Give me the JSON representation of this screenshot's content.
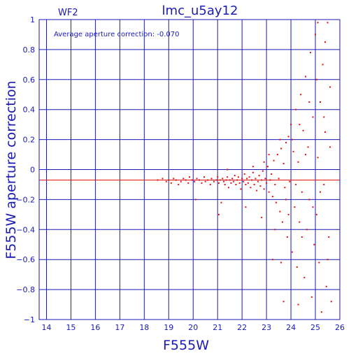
{
  "colors": {
    "axis": "#1a1ab4",
    "grid": "#1a1ab4",
    "points": "#e01010",
    "average_line": "#e01010",
    "background": "#ffffff"
  },
  "chart_data": {
    "type": "scatter",
    "title": "lmc_u5ay12",
    "chip_label": "WF2",
    "annotation": "Average aperture correction: -0.070",
    "xlabel": "F555W",
    "ylabel": "F555W aperture correction",
    "xlim": [
      13.7,
      26.0
    ],
    "ylim": [
      -1.0,
      1.0
    ],
    "x_ticks": [
      14,
      15,
      16,
      17,
      18,
      19,
      20,
      21,
      22,
      23,
      24,
      25,
      26
    ],
    "x_tick_labels": [
      "14",
      "15",
      "16",
      "17",
      "18",
      "19",
      "20",
      "21",
      "22",
      "23",
      "24",
      "25",
      "26"
    ],
    "y_ticks": [
      -1,
      -0.8,
      -0.6,
      -0.4,
      -0.2,
      0,
      0.2,
      0.4,
      0.6,
      0.8,
      1
    ],
    "y_tick_labels": [
      "−1",
      "−0.8",
      "−0.6",
      "−0.4",
      "−0.2",
      "0",
      "0.2",
      "0.4",
      "0.6",
      "0.8",
      "1"
    ],
    "grid": true,
    "average_line_y": -0.07,
    "points": [
      [
        18.55,
        -0.07
      ],
      [
        18.75,
        -0.06
      ],
      [
        18.9,
        -0.08
      ],
      [
        19.0,
        -0.07
      ],
      [
        19.1,
        -0.09
      ],
      [
        19.2,
        -0.06
      ],
      [
        19.3,
        -0.07
      ],
      [
        19.4,
        -0.1
      ],
      [
        19.5,
        -0.08
      ],
      [
        19.6,
        -0.06
      ],
      [
        19.7,
        -0.07
      ],
      [
        19.8,
        -0.09
      ],
      [
        19.85,
        -0.05
      ],
      [
        19.95,
        -0.07
      ],
      [
        20.05,
        -0.08
      ],
      [
        20.1,
        -0.2
      ],
      [
        20.15,
        -0.06
      ],
      [
        20.25,
        -0.07
      ],
      [
        20.35,
        -0.09
      ],
      [
        20.45,
        -0.05
      ],
      [
        20.5,
        -0.08
      ],
      [
        20.6,
        -0.07
      ],
      [
        20.7,
        -0.1
      ],
      [
        20.75,
        -0.06
      ],
      [
        20.85,
        -0.08
      ],
      [
        20.95,
        -0.07
      ],
      [
        21.0,
        -0.05
      ],
      [
        21.05,
        -0.09
      ],
      [
        21.1,
        -0.07
      ],
      [
        21.15,
        -0.22
      ],
      [
        21.2,
        -0.06
      ],
      [
        21.25,
        -0.08
      ],
      [
        21.3,
        -0.1
      ],
      [
        21.35,
        -0.07
      ],
      [
        21.4,
        -0.05
      ],
      [
        21.45,
        -0.12
      ],
      [
        21.5,
        -0.07
      ],
      [
        21.55,
        -0.09
      ],
      [
        21.6,
        -0.06
      ],
      [
        21.65,
        -0.08
      ],
      [
        21.7,
        -0.04
      ],
      [
        21.75,
        -0.1
      ],
      [
        21.8,
        -0.07
      ],
      [
        21.85,
        -0.05
      ],
      [
        21.9,
        -0.09
      ],
      [
        21.95,
        -0.13
      ],
      [
        22.0,
        -0.06
      ],
      [
        22.05,
        -0.08
      ],
      [
        22.1,
        -0.03
      ],
      [
        22.15,
        -0.1
      ],
      [
        22.2,
        -0.06
      ],
      [
        22.25,
        -0.09
      ],
      [
        22.3,
        -0.05
      ],
      [
        22.35,
        -0.12
      ],
      [
        22.4,
        -0.07
      ],
      [
        22.45,
        -0.02
      ],
      [
        22.5,
        -0.1
      ],
      [
        22.55,
        -0.06
      ],
      [
        22.6,
        -0.14
      ],
      [
        22.65,
        -0.08
      ],
      [
        22.7,
        -0.04
      ],
      [
        22.75,
        -0.11
      ],
      [
        22.8,
        -0.07
      ],
      [
        22.85,
        -0.01
      ],
      [
        22.9,
        -0.13
      ],
      [
        22.95,
        -0.06
      ],
      [
        23.0,
        -0.09
      ],
      [
        23.05,
        0.02
      ],
      [
        23.1,
        -0.15
      ],
      [
        23.15,
        -0.07
      ],
      [
        23.2,
        -0.03
      ],
      [
        23.25,
        -0.18
      ],
      [
        23.3,
        0.06
      ],
      [
        23.35,
        -0.1
      ],
      [
        23.4,
        -0.22
      ],
      [
        23.45,
        0.1
      ],
      [
        23.5,
        -0.06
      ],
      [
        23.55,
        -0.28
      ],
      [
        23.6,
        0.14
      ],
      [
        23.65,
        -0.35
      ],
      [
        23.7,
        0.04
      ],
      [
        23.75,
        -0.12
      ],
      [
        23.8,
        0.18
      ],
      [
        23.85,
        -0.45
      ],
      [
        23.9,
        0.22
      ],
      [
        23.95,
        -0.08
      ],
      [
        24.0,
        0.3
      ],
      [
        24.05,
        -0.55
      ],
      [
        24.1,
        0.12
      ],
      [
        24.15,
        -0.25
      ],
      [
        24.2,
        0.4
      ],
      [
        24.25,
        -0.65
      ],
      [
        24.3,
        0.05
      ],
      [
        24.35,
        -0.35
      ],
      [
        24.4,
        0.5
      ],
      [
        24.45,
        -0.15
      ],
      [
        24.5,
        0.26
      ],
      [
        24.55,
        -0.72
      ],
      [
        24.6,
        0.62
      ],
      [
        24.65,
        -0.4
      ],
      [
        24.7,
        0.15
      ],
      [
        24.75,
        -0.2
      ],
      [
        24.8,
        0.78
      ],
      [
        24.85,
        -0.85
      ],
      [
        24.9,
        0.35
      ],
      [
        24.95,
        -0.5
      ],
      [
        25.0,
        0.9
      ],
      [
        25.05,
        -0.3
      ],
      [
        25.1,
        0.08
      ],
      [
        25.15,
        -0.62
      ],
      [
        25.2,
        0.45
      ],
      [
        25.25,
        -0.95
      ],
      [
        25.3,
        0.7
      ],
      [
        25.35,
        -0.1
      ],
      [
        25.4,
        0.25
      ],
      [
        25.45,
        -0.78
      ],
      [
        25.5,
        0.98
      ],
      [
        25.55,
        -0.45
      ],
      [
        25.6,
        0.55
      ],
      [
        25.65,
        -0.88
      ],
      [
        21.05,
        -0.3
      ],
      [
        21.4,
        0.0
      ],
      [
        22.15,
        -0.25
      ],
      [
        22.45,
        0.02
      ],
      [
        22.8,
        -0.32
      ],
      [
        22.9,
        0.05
      ],
      [
        23.1,
        0.1
      ],
      [
        23.35,
        -0.4
      ],
      [
        23.55,
        0.2
      ],
      [
        23.8,
        -0.2
      ],
      [
        23.9,
        -0.3
      ],
      [
        24.05,
        0.2
      ],
      [
        24.2,
        -0.1
      ],
      [
        24.35,
        0.3
      ],
      [
        24.45,
        -0.45
      ],
      [
        24.6,
        0.1
      ],
      [
        24.75,
        0.45
      ],
      [
        24.9,
        -0.25
      ],
      [
        25.05,
        0.6
      ],
      [
        25.2,
        -0.15
      ],
      [
        25.35,
        0.35
      ],
      [
        25.5,
        -0.6
      ],
      [
        25.6,
        0.15
      ],
      [
        23.25,
        -0.6
      ],
      [
        23.6,
        -0.62
      ],
      [
        23.7,
        -0.88
      ],
      [
        24.3,
        -0.9
      ],
      [
        25.1,
        0.98
      ],
      [
        25.4,
        0.85
      ]
    ]
  }
}
